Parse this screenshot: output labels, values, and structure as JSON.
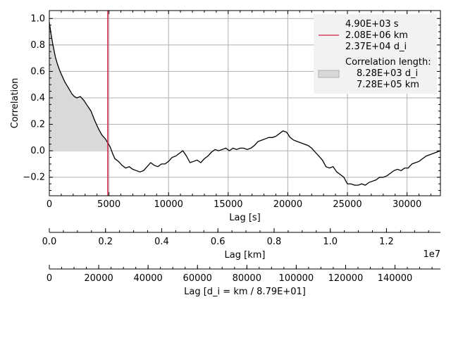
{
  "chart_data": {
    "type": "line",
    "ylabel": "Correlation",
    "ylim": [
      -0.34,
      1.06
    ],
    "grid": true,
    "legend_position": "top-right",
    "main_axis": {
      "xlabel": "Lag [s]",
      "xlim": [
        0,
        32800
      ],
      "xticks": [
        0,
        5000,
        10000,
        15000,
        20000,
        25000,
        30000
      ],
      "xtick_labels": [
        "0",
        "5000",
        "10000",
        "15000",
        "20000",
        "25000",
        "30000"
      ],
      "yticks": [
        -0.2,
        0.0,
        0.2,
        0.4,
        0.6,
        0.8,
        1.0
      ],
      "ytick_labels": [
        "−0.2",
        "0.0",
        "0.2",
        "0.4",
        "0.6",
        "0.8",
        "1.0"
      ]
    },
    "km_axis": {
      "xlabel": "Lag [km]",
      "offset_label": "1e7",
      "xlim": [
        0,
        1.392
      ],
      "xticks": [
        0,
        0.2,
        0.4,
        0.6,
        0.8,
        1.0,
        1.2
      ],
      "xtick_labels": [
        "0.0",
        "0.2",
        "0.4",
        "0.6",
        "0.8",
        "1.0",
        "1.2"
      ]
    },
    "di_axis": {
      "xlabel": "Lag [d_i = km / 8.79E+01]",
      "xlim": [
        0,
        158400
      ],
      "xticks": [
        0,
        20000,
        40000,
        60000,
        80000,
        100000,
        120000,
        140000
      ],
      "xtick_labels": [
        "0",
        "20000",
        "40000",
        "60000",
        "80000",
        "100000",
        "120000",
        "140000"
      ]
    },
    "series": [
      {
        "x": [
          0,
          150,
          300,
          500,
          700,
          900,
          1100,
          1300,
          1500,
          1700,
          1900,
          2100,
          2300,
          2600,
          2900,
          3200,
          3500,
          3800,
          4100,
          4400,
          4700,
          4900,
          5100,
          5300,
          5500,
          5800,
          6100,
          6400,
          6700,
          7000,
          7300,
          7600,
          7900,
          8200,
          8500,
          8800,
          9100,
          9400,
          9700,
          10000,
          10300,
          10600,
          10900,
          11200,
          11500,
          11800,
          12100,
          12400,
          12700,
          13000,
          13300,
          13600,
          13900,
          14200,
          14500,
          14800,
          15100,
          15400,
          15700,
          16000,
          16300,
          16600,
          16900,
          17200,
          17500,
          17800,
          18100,
          18400,
          18700,
          19000,
          19300,
          19600,
          19900,
          20200,
          20500,
          20800,
          21100,
          21400,
          21700,
          22000,
          22300,
          22600,
          22900,
          23200,
          23500,
          23800,
          24100,
          24400,
          24700,
          25000,
          25300,
          25600,
          25900,
          26200,
          26500,
          26800,
          27100,
          27400,
          27700,
          28000,
          28300,
          28600,
          28900,
          29200,
          29500,
          29800,
          30100,
          30400,
          30700,
          31000,
          31300,
          31600,
          31900,
          32200,
          32500,
          32800
        ],
        "y": [
          0.97,
          0.88,
          0.8,
          0.71,
          0.65,
          0.6,
          0.56,
          0.52,
          0.49,
          0.46,
          0.43,
          0.41,
          0.4,
          0.41,
          0.38,
          0.34,
          0.3,
          0.23,
          0.17,
          0.12,
          0.09,
          0.06,
          0.03,
          -0.02,
          -0.06,
          -0.08,
          -0.11,
          -0.13,
          -0.12,
          -0.14,
          -0.15,
          -0.16,
          -0.15,
          -0.12,
          -0.09,
          -0.11,
          -0.12,
          -0.1,
          -0.1,
          -0.08,
          -0.05,
          -0.04,
          -0.02,
          0.0,
          -0.04,
          -0.09,
          -0.08,
          -0.07,
          -0.09,
          -0.06,
          -0.04,
          -0.01,
          0.01,
          0.0,
          0.01,
          0.02,
          0.0,
          0.02,
          0.01,
          0.02,
          0.02,
          0.01,
          0.02,
          0.04,
          0.07,
          0.08,
          0.09,
          0.1,
          0.1,
          0.11,
          0.13,
          0.15,
          0.14,
          0.1,
          0.08,
          0.07,
          0.06,
          0.05,
          0.04,
          0.02,
          -0.01,
          -0.04,
          -0.07,
          -0.12,
          -0.13,
          -0.12,
          -0.16,
          -0.18,
          -0.2,
          -0.25,
          -0.25,
          -0.26,
          -0.26,
          -0.25,
          -0.26,
          -0.24,
          -0.23,
          -0.22,
          -0.2,
          -0.2,
          -0.19,
          -0.17,
          -0.15,
          -0.14,
          -0.15,
          -0.13,
          -0.13,
          -0.1,
          -0.09,
          -0.08,
          -0.06,
          -0.04,
          -0.03,
          -0.02,
          -0.01,
          0.0
        ],
        "color": "#000000"
      }
    ],
    "shaded_region": {
      "x_start": 0,
      "x_end": 4900,
      "color": "#d9d9d9"
    },
    "marker_line": {
      "x": 4900,
      "color": "#d6204d"
    },
    "legend": {
      "line_entry": [
        "4.90E+03 s",
        "2.08E+06 km",
        "2.37E+04 d_i"
      ],
      "patch_entry": [
        "Correlation length:",
        "8.28E+03 d_i",
        "7.28E+05 km"
      ]
    }
  }
}
